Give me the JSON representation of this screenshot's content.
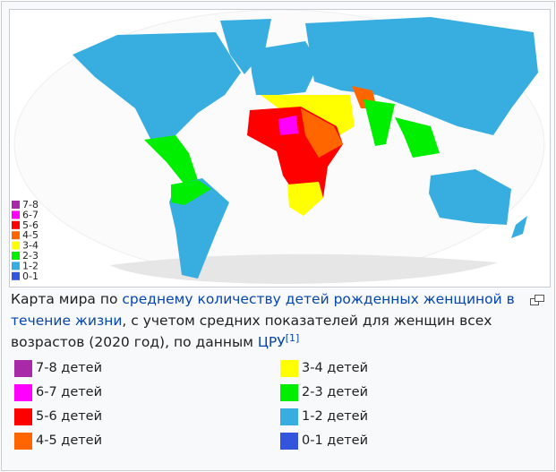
{
  "map": {
    "legend": [
      {
        "label": "7-8",
        "color": "#a82aa8"
      },
      {
        "label": "6-7",
        "color": "#ff00ff"
      },
      {
        "label": "5-6",
        "color": "#ff0000"
      },
      {
        "label": "4-5",
        "color": "#ff6600"
      },
      {
        "label": "3-4",
        "color": "#ffff00"
      },
      {
        "label": "2-3",
        "color": "#00ee00"
      },
      {
        "label": "1-2",
        "color": "#38aee0"
      },
      {
        "label": "0-1",
        "color": "#3355dd"
      }
    ]
  },
  "caption": {
    "text1": "Карта мира по ",
    "link1": "среднему количеству детей рожденных женщиной в течение жизни",
    "text2": ", с учетом средних показателей для женщин всех возрастов (2020 год), по данным ",
    "link2": "ЦРУ",
    "ref": "[1]"
  },
  "legend": [
    {
      "label": "7-8 детей",
      "color": "#a82aa8"
    },
    {
      "label": "6-7 детей",
      "color": "#ff00ff"
    },
    {
      "label": "5-6 детей",
      "color": "#ff0000"
    },
    {
      "label": "4-5 детей",
      "color": "#ff6600"
    },
    {
      "label": "3-4 детей",
      "color": "#ffff00"
    },
    {
      "label": "2-3 детей",
      "color": "#00ee00"
    },
    {
      "label": "1-2 детей",
      "color": "#38aee0"
    },
    {
      "label": "0-1 детей",
      "color": "#3355dd"
    }
  ]
}
